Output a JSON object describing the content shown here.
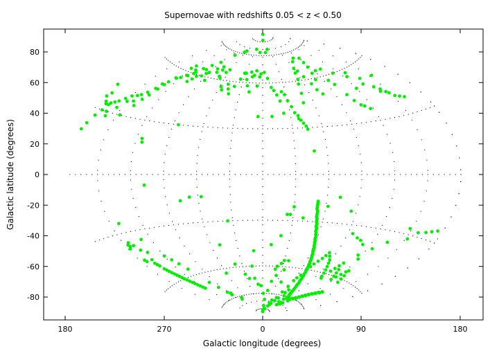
{
  "chart_data": {
    "type": "scatter",
    "title": "Supernovae with redshifts 0.05 < z < 0.50",
    "xlabel": "Galactic longitude (degrees)",
    "ylabel": "Galactic latitude (degrees)",
    "projection": "Aitoff (hammer-like), centered on longitude 0",
    "x_tick_labels": [
      "180",
      "270",
      "0",
      "90",
      "180"
    ],
    "y_tick_labels": [
      "80",
      "60",
      "40",
      "20",
      "0",
      "-20",
      "-40",
      "-60",
      "-80"
    ],
    "ylim": [
      -95,
      95
    ],
    "grid": "graticule dotted lines every 30 degrees longitude and 30 degrees latitude (within projected ellipse)",
    "point_color": "#00ee00",
    "axis_color": "#000000",
    "graticule_color": "#000000",
    "background_color": "#ffffff",
    "points_description": "Each point is [galactic longitude (deg, 0-360), galactic latitude (deg)]",
    "points": [
      [
        342,
        -90
      ],
      [
        5,
        -89
      ],
      [
        2,
        88
      ],
      [
        358,
        92
      ],
      [
        350,
        80
      ],
      [
        10,
        80
      ],
      [
        20,
        82
      ],
      [
        333,
        82
      ],
      [
        300,
        80
      ],
      [
        296,
        79
      ],
      [
        280,
        76
      ],
      [
        270,
        70
      ],
      [
        262,
        67
      ],
      [
        255,
        64
      ],
      [
        250,
        60
      ],
      [
        246,
        58
      ],
      [
        240,
        56
      ],
      [
        235,
        55
      ],
      [
        232,
        52
      ],
      [
        228,
        50
      ],
      [
        226,
        47
      ],
      [
        222,
        44
      ],
      [
        218,
        42
      ],
      [
        215,
        41
      ],
      [
        210,
        40
      ],
      [
        206,
        38
      ],
      [
        202,
        36
      ],
      [
        199,
        35
      ],
      [
        196,
        34
      ],
      [
        193,
        30
      ],
      [
        190,
        27
      ],
      [
        187,
        23
      ],
      [
        185,
        20
      ],
      [
        184,
        42
      ],
      [
        186,
        36
      ],
      [
        188,
        38
      ],
      [
        190,
        34
      ],
      [
        192,
        33
      ],
      [
        195,
        33
      ],
      [
        198,
        30
      ],
      [
        200,
        28
      ],
      [
        205,
        33
      ],
      [
        210,
        37
      ],
      [
        213,
        30
      ],
      [
        216,
        38
      ],
      [
        220,
        36
      ],
      [
        223,
        40
      ],
      [
        226,
        43
      ],
      [
        229,
        47
      ],
      [
        231,
        50
      ],
      [
        236,
        55
      ],
      [
        238,
        62
      ],
      [
        240,
        64
      ],
      [
        244,
        58
      ],
      [
        247,
        62
      ],
      [
        251,
        61
      ],
      [
        253,
        55
      ],
      [
        256,
        57
      ],
      [
        258,
        59
      ],
      [
        261,
        64
      ],
      [
        264,
        60
      ],
      [
        267,
        62
      ],
      [
        270,
        63
      ],
      [
        274,
        58
      ],
      [
        277,
        66
      ],
      [
        281,
        64
      ],
      [
        284,
        68
      ],
      [
        287,
        66
      ],
      [
        290,
        62
      ],
      [
        293,
        61
      ],
      [
        296,
        65
      ],
      [
        299,
        67
      ],
      [
        302,
        56
      ],
      [
        305,
        54
      ],
      [
        310,
        58
      ],
      [
        313,
        55
      ],
      [
        316,
        52
      ],
      [
        320,
        57
      ],
      [
        325,
        62
      ],
      [
        328,
        66
      ],
      [
        331,
        66
      ],
      [
        335,
        62
      ],
      [
        338,
        58
      ],
      [
        340,
        67
      ],
      [
        343,
        64
      ],
      [
        346,
        65
      ],
      [
        349,
        68
      ],
      [
        352,
        58
      ],
      [
        355,
        64
      ],
      [
        357,
        66
      ],
      [
        3,
        67
      ],
      [
        8,
        63
      ],
      [
        12,
        57
      ],
      [
        15,
        55
      ],
      [
        18,
        52
      ],
      [
        21,
        48
      ],
      [
        25,
        54
      ],
      [
        28,
        52
      ],
      [
        30,
        48
      ],
      [
        33,
        44
      ],
      [
        35,
        40
      ],
      [
        38,
        36
      ],
      [
        40,
        35
      ],
      [
        42,
        33
      ],
      [
        44,
        31
      ],
      [
        45,
        29
      ],
      [
        48,
        46
      ],
      [
        50,
        52
      ],
      [
        52,
        58
      ],
      [
        55,
        61
      ],
      [
        57,
        65
      ],
      [
        60,
        68
      ],
      [
        63,
        66
      ],
      [
        66,
        62
      ],
      [
        70,
        57
      ],
      [
        72,
        53
      ],
      [
        76,
        50
      ],
      [
        80,
        59
      ],
      [
        83,
        63
      ],
      [
        86,
        67
      ],
      [
        88,
        70
      ],
      [
        92,
        64
      ],
      [
        96,
        57
      ],
      [
        99,
        54
      ],
      [
        103,
        47
      ],
      [
        106,
        43
      ],
      [
        110,
        40
      ],
      [
        113,
        39
      ],
      [
        117,
        37
      ],
      [
        120,
        49
      ],
      [
        124,
        56
      ],
      [
        128,
        58
      ],
      [
        132,
        50
      ],
      [
        136,
        53
      ],
      [
        140,
        47
      ],
      [
        144,
        45
      ],
      [
        147,
        43
      ],
      [
        149,
        42
      ],
      [
        152,
        40
      ],
      [
        156,
        39
      ],
      [
        160,
        38
      ],
      [
        153,
        52
      ],
      [
        142,
        44
      ],
      [
        112,
        60
      ],
      [
        102,
        64
      ],
      [
        90,
        73
      ],
      [
        78,
        74
      ],
      [
        69,
        72
      ],
      [
        10,
        38
      ],
      [
        23,
        40
      ],
      [
        38,
        38
      ],
      [
        48,
        15
      ],
      [
        355,
        38
      ],
      [
        342,
        54
      ],
      [
        275,
        30
      ],
      [
        252,
        -6
      ],
      [
        246,
        18
      ],
      [
        245,
        20
      ],
      [
        283,
        -16
      ],
      [
        292,
        -14
      ],
      [
        303,
        -14
      ],
      [
        325,
        -30
      ],
      [
        349,
        -50
      ],
      [
        10,
        -46
      ],
      [
        20,
        -40
      ],
      [
        24,
        -26
      ],
      [
        27,
        -26
      ],
      [
        30,
        -21
      ],
      [
        40,
        -28
      ],
      [
        62,
        -20
      ],
      [
        72,
        -14
      ],
      [
        85,
        -22
      ],
      [
        95,
        -35
      ],
      [
        102,
        -37
      ],
      [
        107,
        -38
      ],
      [
        112,
        -40
      ],
      [
        116,
        -46
      ],
      [
        120,
        -48
      ],
      [
        125,
        -41
      ],
      [
        135,
        -36
      ],
      [
        148,
        -27
      ],
      [
        152,
        -32
      ],
      [
        158,
        -28
      ],
      [
        165,
        -27
      ],
      [
        170,
        -26
      ],
      [
        175,
        -25
      ],
      [
        218,
        -25
      ],
      [
        221,
        -40
      ],
      [
        218,
        -37
      ],
      [
        215,
        -45
      ],
      [
        216,
        -46
      ],
      [
        223,
        -46
      ],
      [
        226,
        -42
      ],
      [
        230,
        -35
      ],
      [
        240,
        -46
      ],
      [
        244,
        -49
      ],
      [
        248,
        -52
      ],
      [
        252,
        -56
      ],
      [
        260,
        -66
      ],
      [
        264,
        -70
      ],
      [
        268,
        -74
      ],
      [
        270,
        -76
      ],
      [
        272,
        -75
      ],
      [
        280,
        -80
      ],
      [
        285,
        -79
      ],
      [
        300,
        -63
      ],
      [
        310,
        -45
      ],
      [
        320,
        -58
      ],
      [
        330,
        -65
      ],
      [
        335,
        -68
      ],
      [
        344,
        -60
      ],
      [
        345,
        -68
      ],
      [
        350,
        -72
      ],
      [
        356,
        -73
      ],
      [
        2,
        -78
      ],
      [
        8,
        -82
      ],
      [
        14,
        -76
      ],
      [
        18,
        -70
      ],
      [
        20,
        -62
      ],
      [
        22,
        -60
      ],
      [
        24,
        -66
      ],
      [
        27,
        -58
      ],
      [
        30,
        -56
      ],
      [
        34,
        -62
      ],
      [
        36,
        -56
      ],
      [
        38,
        -70
      ],
      [
        40,
        -84
      ],
      [
        42,
        -82
      ],
      [
        45,
        -86
      ],
      [
        48,
        -85
      ],
      [
        50,
        -84
      ],
      [
        52,
        -80
      ],
      [
        55,
        -76
      ],
      [
        58,
        -72
      ],
      [
        60,
        -68
      ],
      [
        62,
        -66
      ],
      [
        65,
        -64
      ],
      [
        68,
        -60
      ],
      [
        70,
        -58
      ],
      [
        72,
        -56
      ],
      [
        75,
        -54
      ],
      [
        78,
        -52
      ],
      [
        80,
        -50
      ],
      [
        82,
        -48
      ],
      [
        85,
        -50
      ],
      [
        88,
        -52
      ],
      [
        90,
        -54
      ],
      [
        92,
        -56
      ],
      [
        94,
        -58
      ],
      [
        96,
        -60
      ],
      [
        98,
        -62
      ],
      [
        100,
        -63
      ],
      [
        102,
        -58
      ],
      [
        104,
        -56
      ],
      [
        106,
        -54
      ],
      [
        108,
        -52
      ],
      [
        110,
        -56
      ],
      [
        112,
        -58
      ],
      [
        114,
        -60
      ],
      [
        116,
        -62
      ],
      [
        118,
        -60
      ],
      [
        120,
        -58
      ],
      [
        122,
        -56
      ],
      [
        124,
        -55
      ],
      [
        126,
        -58
      ],
      [
        128,
        -60
      ],
      [
        130,
        -62
      ],
      [
        34,
        -88
      ],
      [
        8,
        -86
      ],
      [
        20,
        -88
      ],
      [
        52,
        -17
      ],
      [
        52,
        -18
      ],
      [
        52,
        -19
      ],
      [
        52,
        -20
      ],
      [
        52,
        -21
      ],
      [
        52,
        -22
      ],
      [
        53,
        -23
      ],
      [
        53,
        -24
      ],
      [
        53,
        -25
      ],
      [
        53,
        -26
      ],
      [
        53,
        -27
      ],
      [
        54,
        -28
      ],
      [
        54,
        -29
      ],
      [
        54,
        -30
      ],
      [
        55,
        -31
      ],
      [
        55,
        -32
      ],
      [
        55,
        -33
      ],
      [
        56,
        -34
      ],
      [
        56,
        -35
      ],
      [
        56,
        -36
      ],
      [
        57,
        -37
      ],
      [
        57,
        -38
      ],
      [
        58,
        -39
      ],
      [
        58,
        -40
      ],
      [
        58,
        -41
      ],
      [
        59,
        -42
      ],
      [
        59,
        -43
      ],
      [
        60,
        -44
      ],
      [
        60,
        -45
      ],
      [
        61,
        -46
      ],
      [
        61,
        -47
      ],
      [
        62,
        -48
      ],
      [
        62,
        -49
      ],
      [
        63,
        -50
      ],
      [
        63,
        -51
      ],
      [
        64,
        -52
      ],
      [
        64,
        -53
      ],
      [
        65,
        -54
      ],
      [
        65,
        -55
      ],
      [
        66,
        -56
      ],
      [
        66,
        -57
      ],
      [
        67,
        -58
      ],
      [
        67,
        -59
      ],
      [
        68,
        -60
      ],
      [
        68,
        -61
      ],
      [
        69,
        -62
      ],
      [
        69,
        -63
      ],
      [
        70,
        -64
      ],
      [
        70,
        -65
      ],
      [
        71,
        -66
      ],
      [
        71,
        -67
      ],
      [
        72,
        -68
      ],
      [
        73,
        -69
      ],
      [
        73,
        -70
      ],
      [
        74,
        -71
      ],
      [
        75,
        -72
      ],
      [
        76,
        -73
      ],
      [
        77,
        -74
      ],
      [
        78,
        -75
      ],
      [
        79,
        -76
      ],
      [
        80,
        -76
      ],
      [
        81,
        -77
      ],
      [
        82,
        -77
      ],
      [
        83,
        -77
      ],
      [
        84,
        -78
      ],
      [
        85,
        -78
      ],
      [
        86,
        -78
      ],
      [
        87,
        -79
      ],
      [
        88,
        -79
      ],
      [
        89,
        -79
      ],
      [
        90,
        -79
      ],
      [
        91,
        -79
      ],
      [
        92,
        -79
      ],
      [
        93,
        -79
      ],
      [
        94,
        -79
      ],
      [
        95,
        -79
      ],
      [
        96,
        -79
      ],
      [
        97,
        -79
      ],
      [
        98,
        -79
      ],
      [
        99,
        -79
      ],
      [
        100,
        -79
      ],
      [
        101,
        -78
      ],
      [
        102,
        -78
      ],
      [
        103,
        -78
      ],
      [
        104,
        -78
      ],
      [
        105,
        -78
      ],
      [
        106,
        -77
      ],
      [
        107,
        -77
      ],
      [
        108,
        -77
      ],
      [
        109,
        -77
      ],
      [
        110,
        -76
      ],
      [
        111,
        -76
      ],
      [
        112,
        -76
      ],
      [
        113,
        -75
      ],
      [
        114,
        -75
      ],
      [
        115,
        -75
      ],
      [
        116,
        -74
      ],
      [
        117,
        -74
      ],
      [
        118,
        -74
      ],
      [
        119,
        -73
      ],
      [
        120,
        -73
      ],
      [
        121,
        -73
      ],
      [
        122,
        -72
      ],
      [
        123,
        -72
      ],
      [
        124,
        -72
      ],
      [
        125,
        -71
      ],
      [
        126,
        -71
      ],
      [
        127,
        -71
      ],
      [
        128,
        -70
      ],
      [
        129,
        -70
      ],
      [
        130,
        -70
      ],
      [
        131,
        -70
      ],
      [
        132,
        -69
      ],
      [
        133,
        -69
      ],
      [
        95,
        -82
      ],
      [
        98,
        -83
      ],
      [
        100,
        -82
      ],
      [
        102,
        -80
      ],
      [
        92,
        -82
      ],
      [
        90,
        -83
      ],
      [
        88,
        -84
      ],
      [
        82,
        -80
      ],
      [
        78,
        -82
      ],
      [
        70,
        -78
      ],
      [
        66,
        -74
      ],
      [
        64,
        -76
      ],
      [
        60,
        -80
      ],
      [
        56,
        -82
      ],
      [
        225,
        -52
      ],
      [
        226,
        -53
      ],
      [
        227,
        -54
      ],
      [
        228,
        -55
      ],
      [
        229,
        -56
      ],
      [
        230,
        -57
      ],
      [
        231,
        -58
      ],
      [
        232,
        -59
      ],
      [
        233,
        -60
      ],
      [
        234,
        -61
      ],
      [
        235,
        -62
      ],
      [
        236,
        -63
      ],
      [
        237,
        -64
      ],
      [
        238,
        -65
      ],
      [
        239,
        -66
      ],
      [
        240,
        -67
      ],
      [
        224,
        -50
      ],
      [
        223,
        -49
      ],
      [
        222,
        -48
      ],
      [
        241,
        -68
      ],
      [
        215,
        -35
      ],
      [
        214,
        -37
      ],
      [
        213,
        -36
      ],
      [
        212,
        -38
      ]
    ]
  }
}
